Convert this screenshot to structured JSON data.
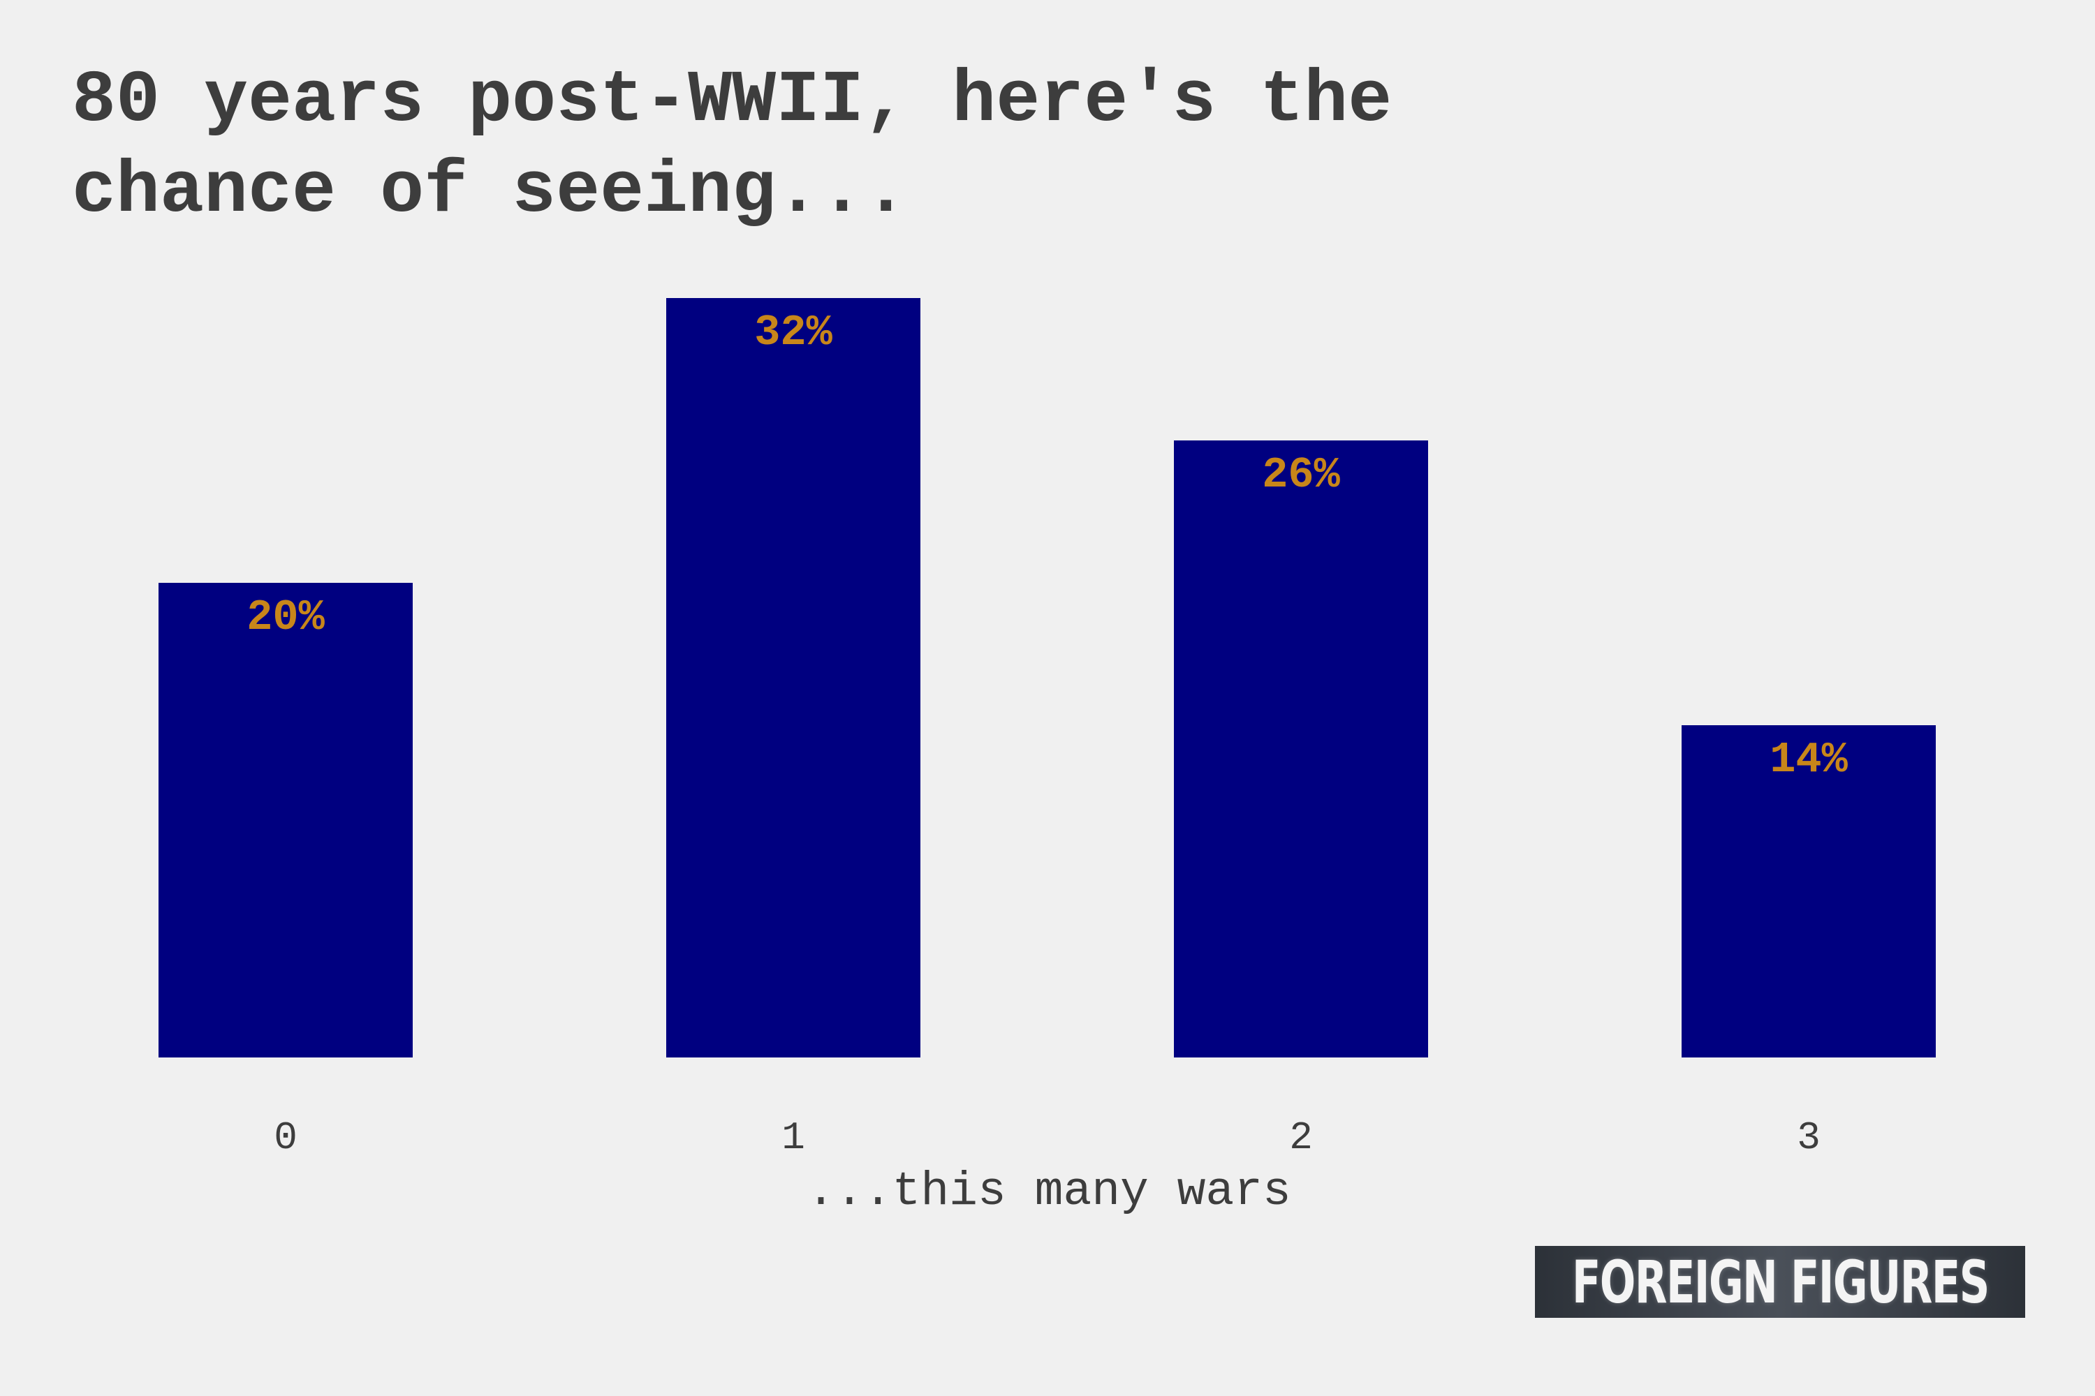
{
  "chart_data": {
    "type": "bar",
    "title_lines": [
      "80 years post-WWII, here's the",
      "chance of seeing..."
    ],
    "categories": [
      "0",
      "1",
      "2",
      "3"
    ],
    "values": [
      20,
      32,
      26,
      14
    ],
    "value_labels": [
      "20%",
      "32%",
      "26%",
      "14%"
    ],
    "xlabel": "...this many wars",
    "ylabel": "",
    "ylim": [
      0,
      32
    ],
    "grid": false,
    "bar_color": "#000080",
    "label_color": "#c8861a"
  },
  "brand": {
    "logo_text": "FOREIGN FIGURES"
  }
}
